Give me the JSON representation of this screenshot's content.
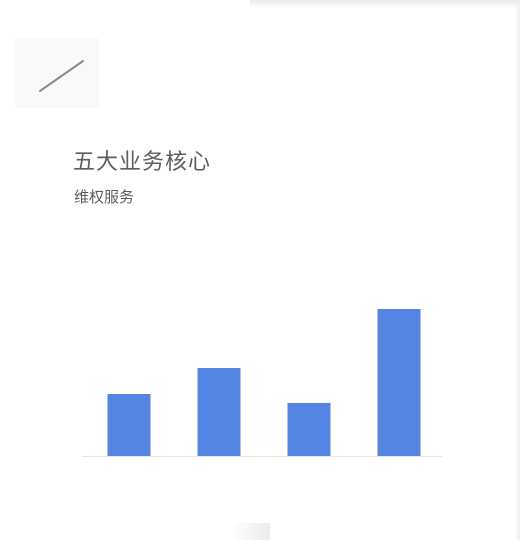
{
  "header": {
    "title": "五大业务核心",
    "subtitle": "维权服务"
  },
  "decor": {
    "slash_icon": "diagonal-line-icon"
  },
  "colors": {
    "bar": "#5585e2",
    "baseline": "#e6e6e6",
    "title": "#5e5e5e"
  },
  "chart_data": {
    "type": "bar",
    "categories": [
      "",
      "",
      "",
      ""
    ],
    "values": [
      62,
      88,
      53,
      147
    ],
    "title": "",
    "xlabel": "",
    "ylabel": "",
    "ylim": [
      0,
      150
    ],
    "grid": false,
    "legend": "none"
  }
}
